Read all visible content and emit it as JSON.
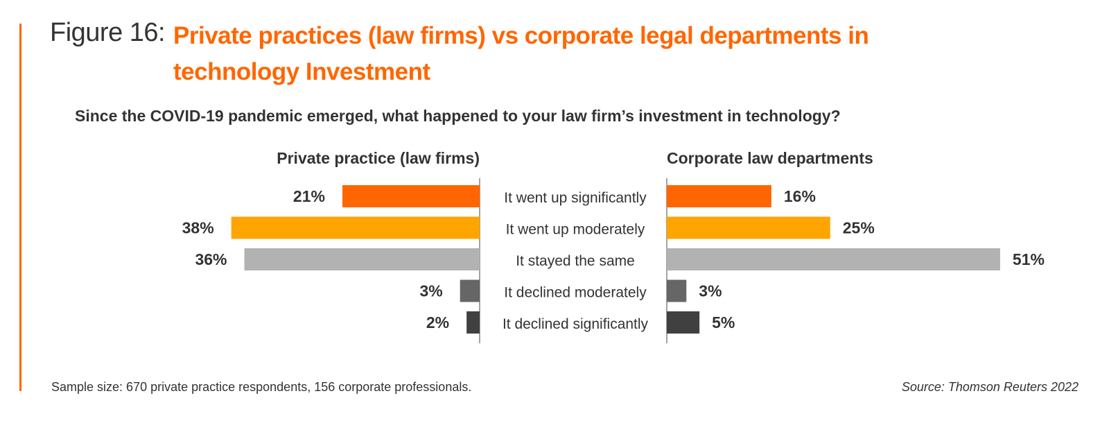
{
  "figure": {
    "label": "Figure 16:",
    "title": "Private practices (law firms) vs corporate legal departments in technology Investment",
    "accent_color": "#FF6600"
  },
  "question": "Since the COVID-19 pandemic emerged, what happened to your law firm’s investment in technology?",
  "footnote": "Sample size: 670 private practice respondents, 156 corporate professionals.",
  "source": "Source: Thomson Reuters 2022",
  "chart_data": {
    "type": "bar",
    "orientation": "horizontal-butterfly",
    "categories": [
      "It went up significantly",
      "It went up moderately",
      "It stayed the same",
      "It declined moderately",
      "It declined significantly"
    ],
    "category_colors": [
      "#FF6600",
      "#FFA500",
      "#B2B2B2",
      "#666666",
      "#404040"
    ],
    "series": [
      {
        "name": "Private practice (law firms)",
        "values": [
          21,
          38,
          36,
          3,
          2
        ],
        "labels": [
          "21%",
          "38%",
          "36%",
          "3%",
          "2%"
        ]
      },
      {
        "name": "Corporate law departments",
        "values": [
          16,
          25,
          51,
          3,
          5
        ],
        "labels": [
          "16%",
          "25%",
          "51%",
          "3%",
          "5%"
        ]
      }
    ],
    "unit": "%",
    "grid": false
  }
}
